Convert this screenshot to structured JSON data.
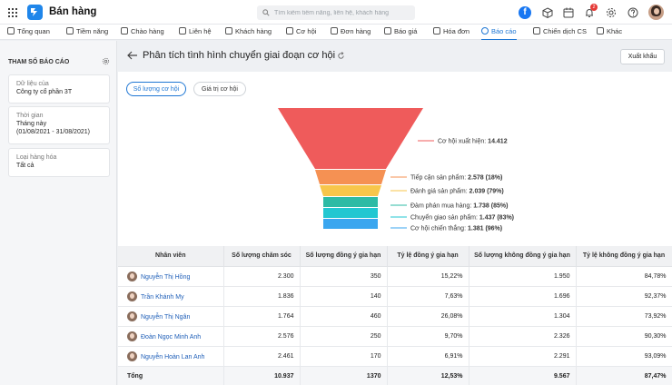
{
  "app": {
    "name": "Bán hàng"
  },
  "search": {
    "placeholder": "Tìm kiếm tiềm năng, liên hệ, khách hàng"
  },
  "notifications": {
    "count": "2"
  },
  "nav": [
    {
      "label": "Tổng quan"
    },
    {
      "label": "Tiềm năng"
    },
    {
      "label": "Chào hàng"
    },
    {
      "label": "Liên hệ"
    },
    {
      "label": "Khách hàng"
    },
    {
      "label": "Cơ hội"
    },
    {
      "label": "Đơn hàng"
    },
    {
      "label": "Báo giá"
    },
    {
      "label": "Hóa đơn"
    },
    {
      "label": "Báo cáo",
      "active": true
    },
    {
      "label": "Chiến dịch CS"
    },
    {
      "label": "Khác"
    }
  ],
  "sidebar": {
    "title": "THAM SỐ BÁO CÁO",
    "data_source": {
      "label": "Dữ liệu của",
      "value": "Công ty cổ phần 3T"
    },
    "time": {
      "label": "Thời gian",
      "value": "Tháng này",
      "range": "(01/08/2021 - 31/08/2021)"
    },
    "product_type": {
      "label": "Loại hàng hóa",
      "value": "Tất cả"
    }
  },
  "report": {
    "title": "Phân tích tình hình chuyển giai đoạn cơ hội",
    "export_label": "Xuất khẩu",
    "toggle": {
      "count_label": "Số lượng cơ hội",
      "value_label": "Giá trị cơ hội"
    }
  },
  "chart_data": {
    "type": "funnel",
    "stages": [
      {
        "label": "Cơ hội xuất hiện: 14.412",
        "name": "Cơ hội xuất hiện",
        "value": 14412,
        "color": "#ef5b5b"
      },
      {
        "label": "Tiếp cận sản phẩm: 2.578 (18%)",
        "name": "Tiếp cận sản phẩm",
        "value": 2578,
        "percent": 18,
        "color": "#f59153"
      },
      {
        "label": "Đánh giá sản phẩm: 2.039 (79%)",
        "name": "Đánh giá sản phẩm",
        "value": 2039,
        "percent": 79,
        "color": "#f7c64b"
      },
      {
        "label": "Đàm phán mua hàng: 1.738 (85%)",
        "name": "Đàm phán mua hàng",
        "value": 1738,
        "percent": 85,
        "color": "#2dbba5"
      },
      {
        "label": "Chuyển giao sản phẩm: 1.437 (83%)",
        "name": "Chuyển giao sản phẩm",
        "value": 1437,
        "percent": 83,
        "color": "#22c7d1"
      },
      {
        "label": "Cơ hội chiến thắng: 1.381 (96%)",
        "name": "Cơ hội chiến thắng",
        "value": 1381,
        "percent": 96,
        "color": "#3aa6ef"
      }
    ]
  },
  "table": {
    "headers": [
      "Nhân viên",
      "Số lượng chăm sóc",
      "Số lượng đồng ý gia hạn",
      "Tỷ lệ đồng ý gia hạn",
      "Số lượng không đồng ý gia hạn",
      "Tỷ lệ không đồng ý gia hạn"
    ],
    "rows": [
      [
        "Nguyễn Thị Hồng",
        "2.300",
        "350",
        "15,22%",
        "1.950",
        "84,78%"
      ],
      [
        "Trần Khánh My",
        "1.836",
        "140",
        "7,63%",
        "1.696",
        "92,37%"
      ],
      [
        "Nguyễn Thị Ngân",
        "1.764",
        "460",
        "26,08%",
        "1.304",
        "73,92%"
      ],
      [
        "Đoàn Ngọc Minh Anh",
        "2.576",
        "250",
        "9,70%",
        "2.326",
        "90,30%"
      ],
      [
        "Nguyễn Hoàn Lan Anh",
        "2.461",
        "170",
        "6,91%",
        "2.291",
        "93,09%"
      ]
    ],
    "total": [
      "Tổng",
      "10.937",
      "1370",
      "12,53%",
      "9.567",
      "87,47%"
    ]
  }
}
